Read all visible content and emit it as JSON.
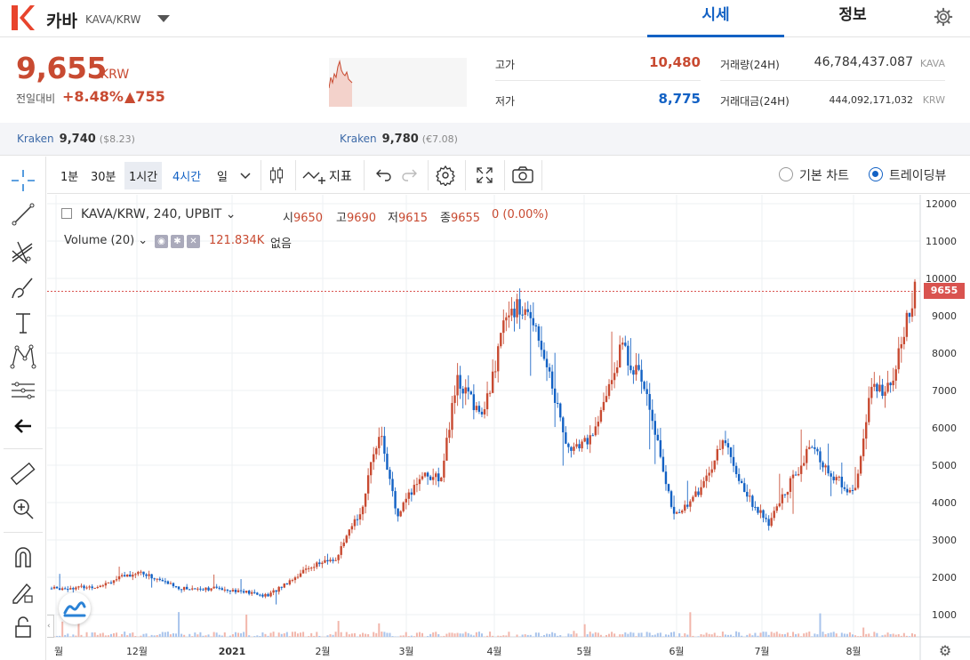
{
  "header": {
    "coin_name": "카바",
    "coin_pair": "KAVA/KRW",
    "tabs": [
      "시세",
      "정보"
    ],
    "brand_color": "#e8442d"
  },
  "price": {
    "current": "9,655",
    "unit": "KRW",
    "change_label": "전일대비",
    "change_pct": "+8.48%",
    "change_amt": "▲755"
  },
  "stats": {
    "high_label": "고가",
    "high": "10,480",
    "low_label": "저가",
    "low": "8,775",
    "volume_label": "거래량(24H)",
    "volume": "46,784,437.087",
    "volume_unit": "KAVA",
    "value_label": "거래대금(24H)",
    "value": "444,092,171,032",
    "value_unit": "KRW"
  },
  "exchanges": [
    {
      "name": "Kraken",
      "price": "9,740",
      "usd": "($8.23)"
    },
    {
      "name": "Kraken",
      "price": "9,780",
      "usd": "(€7.08)"
    }
  ],
  "toolbar": {
    "timeframes": [
      "1분",
      "30분",
      "1시간",
      "4시간",
      "일"
    ],
    "indicator_label": "지표",
    "radio_basic": "기본 차트",
    "radio_tv": "트레이딩뷰"
  },
  "left_tools": [
    "crosshair-icon",
    "trend-line-icon",
    "fib-icon",
    "brush-icon",
    "text-icon",
    "pattern-icon",
    "prediction-icon",
    "arrow-left-icon",
    "ruler-icon",
    "zoom-in-icon",
    "magnet-icon",
    "lock-draw-icon",
    "unlock-icon"
  ],
  "legend": {
    "symbol": "KAVA/KRW, 240, UPBIT",
    "open_label": "시",
    "open": "9650",
    "high_label": "고",
    "high": "9690",
    "low_label": "저",
    "low": "9615",
    "close_label": "종",
    "close": "9655",
    "change": "0 (0.00%)",
    "volume_label": "Volume (20)",
    "volume_value": "121.834K",
    "volume_na": "없음"
  },
  "price_tag": "9655",
  "chart_data": {
    "type": "candlestick",
    "y_ticks": [
      "12000",
      "11000",
      "10000",
      "9000",
      "8000",
      "7000",
      "6000",
      "5000",
      "4000",
      "3000",
      "2000",
      "1000"
    ],
    "x_ticks": [
      "월",
      "12월",
      "2021",
      "2월",
      "3월",
      "4월",
      "5월",
      "6월",
      "7월",
      "8월"
    ],
    "ylim": [
      0,
      12000
    ],
    "last_price": 9655,
    "trend_x": [
      0,
      0.05,
      0.1,
      0.15,
      0.2,
      0.25,
      0.3,
      0.33,
      0.36,
      0.38,
      0.4,
      0.43,
      0.45,
      0.47,
      0.5,
      0.53,
      0.56,
      0.6,
      0.63,
      0.66,
      0.69,
      0.72,
      0.75,
      0.78,
      0.8,
      0.83,
      0.85,
      0.88,
      0.9,
      0.93,
      0.95,
      0.97,
      1.0
    ],
    "trend_y": [
      1700,
      1750,
      2150,
      1700,
      1700,
      1500,
      2300,
      2500,
      3900,
      6000,
      3600,
      4800,
      4600,
      7300,
      6300,
      9300,
      8900,
      5300,
      5900,
      8200,
      7000,
      3600,
      4300,
      5700,
      4400,
      3400,
      4300,
      5500,
      4800,
      4200,
      7100,
      7000,
      9655
    ],
    "grid": true
  }
}
